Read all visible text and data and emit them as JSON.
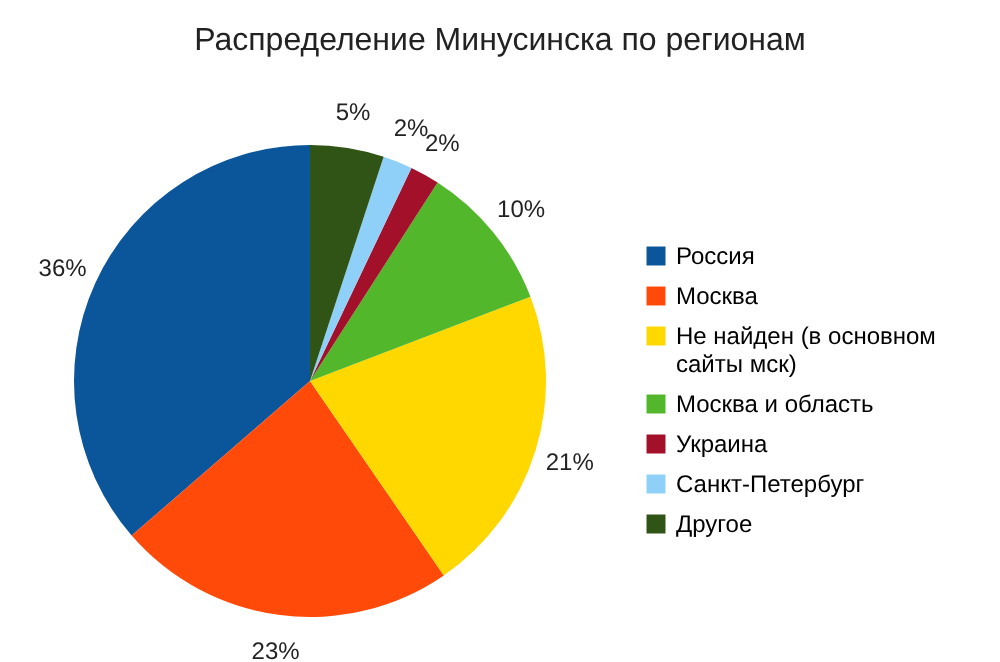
{
  "chart_data": {
    "type": "pie",
    "title": "Распределение Минусинска по регионам",
    "categories": [
      "Россия",
      "Москва",
      "Не найден (в основном сайты мск)",
      "Москва и область",
      "Украина",
      "Санкт-Петербург",
      "Другое"
    ],
    "values": [
      36,
      23,
      21,
      10,
      2,
      2,
      5
    ],
    "colors": [
      "#0b559b",
      "#ff4a0a",
      "#ffd800",
      "#52b72a",
      "#a3102a",
      "#8ed0f8",
      "#2f5416"
    ],
    "value_labels": [
      "36%",
      "23%",
      "21%",
      "10%",
      "2%",
      "2%",
      "5%"
    ],
    "legend": "right"
  }
}
